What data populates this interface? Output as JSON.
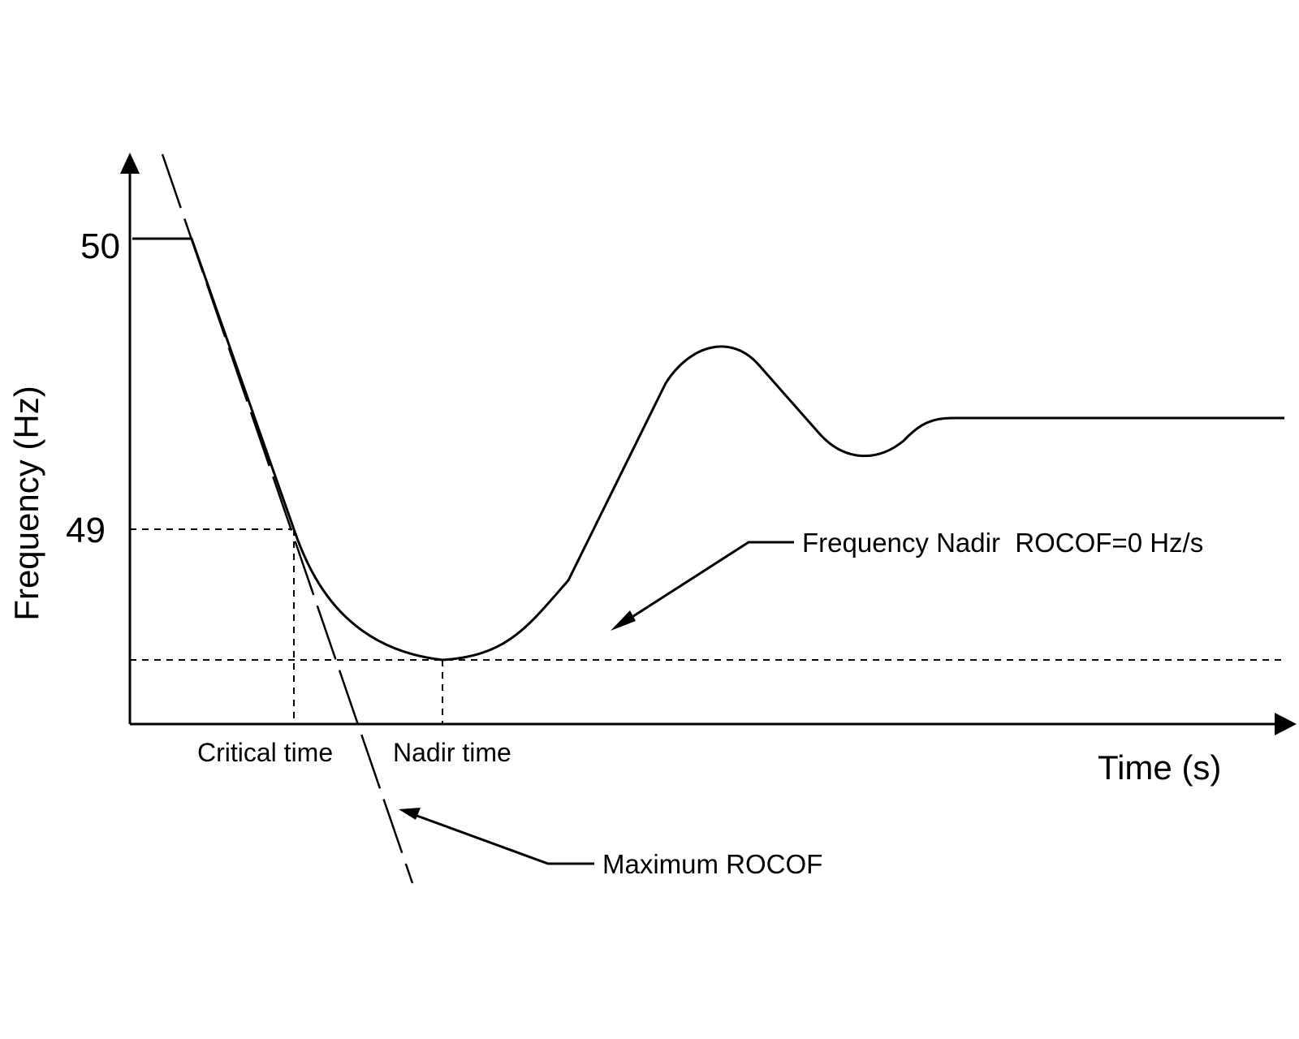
{
  "y_axis": {
    "title": "Frequency (Hz)",
    "ticks": [
      "50",
      "49"
    ]
  },
  "x_axis": {
    "title": "Time (s)",
    "labels": {
      "critical_time": "Critical time",
      "nadir_time": "Nadir time"
    }
  },
  "annotations": {
    "nadir": "Frequency Nadir  ROCOF=0 Hz/s",
    "max_rocof": "Maximum ROCOF"
  }
}
